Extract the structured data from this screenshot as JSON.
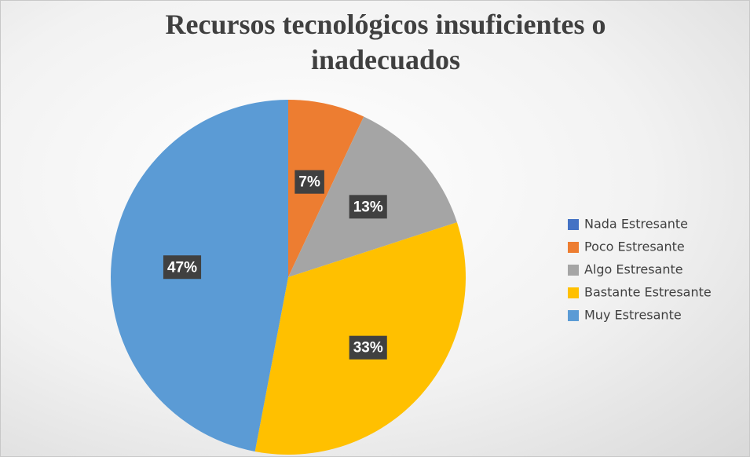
{
  "chart_data": {
    "type": "pie",
    "title": "Recursos tecnológicos insuficientes o inadecuados",
    "categories": [
      "Nada Estresante",
      "Poco Estresante",
      "Algo Estresante",
      "Bastante Estresante",
      "Muy Estresante"
    ],
    "values": [
      0,
      7,
      13,
      33,
      47
    ],
    "value_labels": [
      null,
      "7%",
      "13%",
      "33%",
      "47%"
    ],
    "colors": [
      "#4472c4",
      "#ed7d31",
      "#a5a5a5",
      "#ffc000",
      "#5b9bd5"
    ],
    "legend": "right"
  }
}
